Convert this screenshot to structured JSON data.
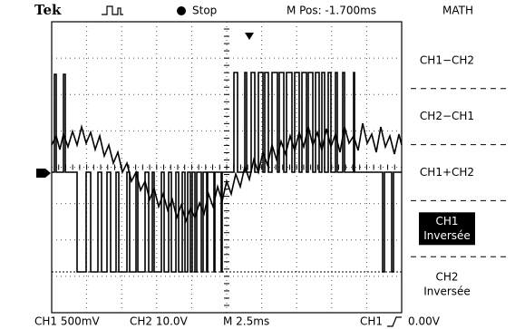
{
  "header": {
    "brand": "Tek",
    "status": "Stop",
    "position": "M Pos: -1.700ms",
    "menu_title": "MATH"
  },
  "menu": [
    {
      "lines": [
        "CH1−CH2"
      ],
      "selected": false
    },
    {
      "lines": [
        "CH2−CH1"
      ],
      "selected": false
    },
    {
      "lines": [
        "CH1+CH2"
      ],
      "selected": false
    },
    {
      "lines": [
        "CH1",
        "Inversée"
      ],
      "selected": true
    },
    {
      "lines": [
        "CH2",
        "Inversée"
      ],
      "selected": false
    }
  ],
  "footer": {
    "ch1_scale": "CH1 500mV",
    "ch2_scale": "CH2 10.0V",
    "timebase": "M 2.5ms",
    "trigger_source": "CH1",
    "trigger_level": "0.00V"
  }
}
